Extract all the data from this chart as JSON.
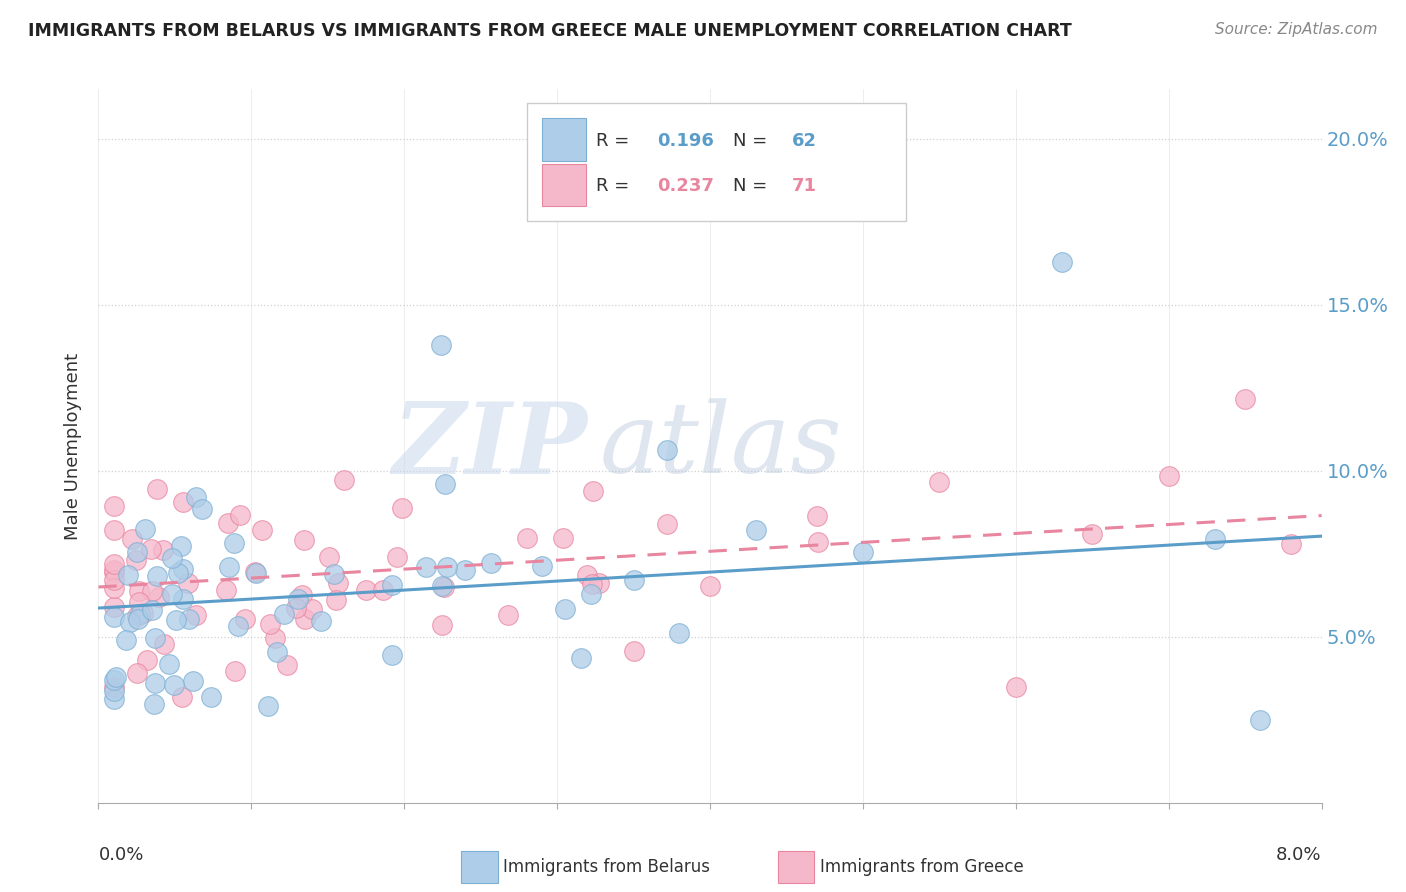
{
  "title": "IMMIGRANTS FROM BELARUS VS IMMIGRANTS FROM GREECE MALE UNEMPLOYMENT CORRELATION CHART",
  "source": "Source: ZipAtlas.com",
  "ylabel": "Male Unemployment",
  "xlim": [
    0.0,
    0.08
  ],
  "ylim": [
    0.0,
    0.215
  ],
  "yticks": [
    0.05,
    0.1,
    0.15,
    0.2
  ],
  "ytick_labels": [
    "5.0%",
    "10.0%",
    "15.0%",
    "20.0%"
  ],
  "xtick_labels": [
    "0.0%",
    "",
    "",
    "",
    "",
    "",
    "",
    "",
    "8.0%"
  ],
  "watermark_zip": "ZIP",
  "watermark_atlas": "atlas",
  "legend_r1": "0.196",
  "legend_n1": "62",
  "legend_r2": "0.237",
  "legend_n2": "71",
  "color_belarus_fill": "#aecde8",
  "color_belarus_edge": "#7bafd4",
  "color_greece_fill": "#f5b8cb",
  "color_greece_edge": "#e8859f",
  "color_line_belarus": "#5b9dc9",
  "color_line_greece": "#e8859f",
  "color_ytick": "#5b9dc9",
  "color_xtick_ends": "#333333",
  "bottom_label1": "Immigrants from Belarus",
  "bottom_label2": "Immigrants from Greece"
}
